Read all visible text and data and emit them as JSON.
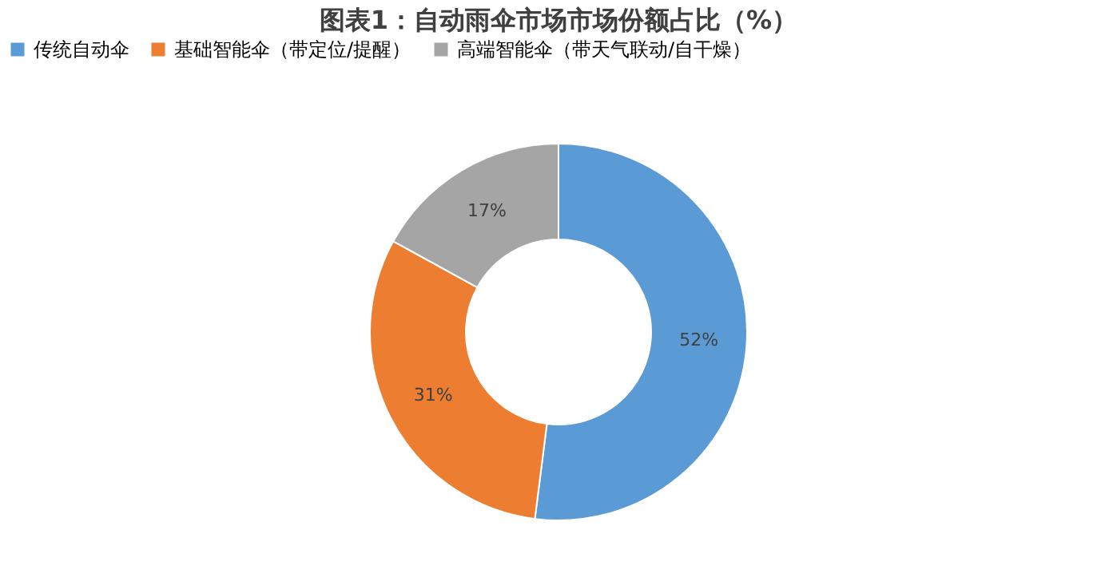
{
  "chart_data": {
    "type": "donut",
    "title": "图表1：自动雨伞市场市场份额占比（%）",
    "categories": [
      "传统自动伞",
      "基础智能伞（带定位/提醒）",
      "高端智能伞（带天气联动/自干燥）"
    ],
    "values": [
      52,
      31,
      17
    ],
    "colors": [
      "#5b9bd5",
      "#ed7d31",
      "#a5a5a5"
    ],
    "value_labels": [
      "52%",
      "31%",
      "17%"
    ],
    "legend": "top"
  }
}
